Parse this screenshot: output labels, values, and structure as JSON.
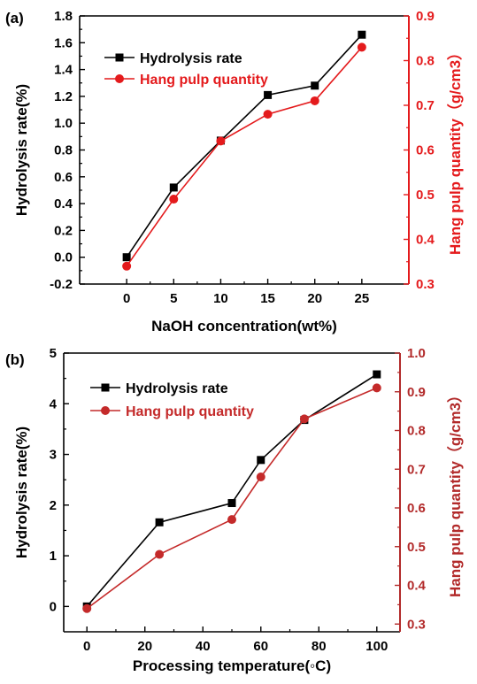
{
  "chart_data": [
    {
      "type": "line",
      "panel_label": "(a)",
      "xlabel": "NaOH concentration(wt%)",
      "ylabel": "Hydrolysis rate(%)",
      "y2label": "Hang pulp quantity（g/cm3）",
      "x": [
        0,
        5,
        10,
        15,
        20,
        25
      ],
      "xticks": [
        "0",
        "5",
        "10",
        "15",
        "20",
        "25"
      ],
      "xlim": [
        -5,
        30
      ],
      "ylim": [
        -0.2,
        1.8
      ],
      "yticks": [
        "-0.2",
        "0.0",
        "0.2",
        "0.4",
        "0.6",
        "0.8",
        "1.0",
        "1.2",
        "1.4",
        "1.6",
        "1.8"
      ],
      "y2lim": [
        0.3,
        0.9
      ],
      "y2ticks": [
        "0.3",
        "0.4",
        "0.5",
        "0.6",
        "0.7",
        "0.8",
        "0.9"
      ],
      "series": [
        {
          "name": "Hydrolysis rate",
          "axis": "left",
          "marker": "square",
          "color": "#000000",
          "values": [
            0.0,
            0.52,
            0.87,
            1.21,
            1.28,
            1.66
          ]
        },
        {
          "name": "Hang pulp quantity",
          "axis": "right",
          "marker": "circle",
          "color": "#e41a1c",
          "values": [
            0.34,
            0.49,
            0.62,
            0.68,
            0.71,
            0.83
          ]
        }
      ],
      "legend": "top-left",
      "grid": false,
      "right_axis_color": "#e41a1c"
    },
    {
      "type": "line",
      "panel_label": "(b)",
      "xlabel": "Processing temperature(◦C)",
      "ylabel": "Hydrolysis rate(%)",
      "y2label": "Hang pulp quantity（g/cm3）",
      "x": [
        0,
        25,
        50,
        60,
        75,
        100
      ],
      "xticks": [
        "0",
        "20",
        "40",
        "60",
        "80",
        "100"
      ],
      "xlim": [
        -8,
        108
      ],
      "ylim": [
        -0.5,
        5
      ],
      "yticks": [
        "0",
        "1",
        "2",
        "3",
        "4",
        "5"
      ],
      "y2lim": [
        0.28,
        1.0
      ],
      "y2ticks": [
        "0.3",
        "0.4",
        "0.5",
        "0.6",
        "0.7",
        "0.8",
        "0.9",
        "1.0"
      ],
      "series": [
        {
          "name": "Hydrolysis rate",
          "axis": "left",
          "marker": "square",
          "color": "#000000",
          "values": [
            0.0,
            1.66,
            2.04,
            2.89,
            3.68,
            4.58
          ]
        },
        {
          "name": "Hang pulp quantity",
          "axis": "right",
          "marker": "circle",
          "color": "#c42a2a",
          "values": [
            0.34,
            0.48,
            0.57,
            0.68,
            0.83,
            0.91
          ]
        }
      ],
      "legend": "top-left",
      "grid": false,
      "right_axis_color": "#b22a2a"
    }
  ]
}
